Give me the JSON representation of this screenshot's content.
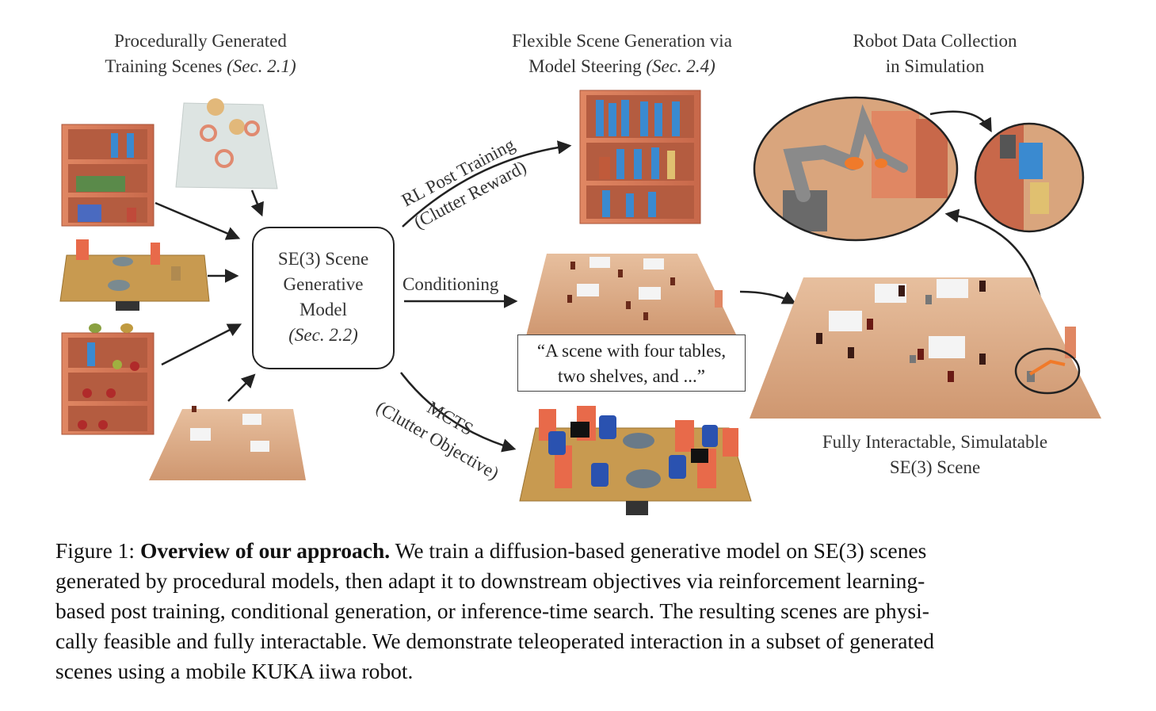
{
  "figure": {
    "titles": {
      "procedural_line1": "Procedurally Generated",
      "procedural_line2": "Training Scenes",
      "procedural_ref": "(Sec. 2.1)",
      "flexible_line1": "Flexible Scene Generation via",
      "flexible_line2": "Model Steering",
      "flexible_ref": "(Sec. 2.4)",
      "robot_line1": "Robot Data Collection",
      "robot_line2": "in Simulation",
      "final_line1": "Fully Interactable, Simulatable",
      "final_line2": "SE(3) Scene"
    },
    "model_box": {
      "line1": "SE(3) Scene",
      "line2": "Generative",
      "line3": "Model",
      "ref": "(Sec. 2.2)"
    },
    "arrows": {
      "rl_line1": "RL Post Training",
      "rl_line2": "(Clutter Reward)",
      "conditioning": "Conditioning",
      "mcts_line1": "MCTS",
      "mcts_line2": "(Clutter Objective)"
    },
    "prompt_line1": "“A scene with four tables,",
    "prompt_line2": "two shelves, and ...”"
  },
  "caption": {
    "label": "Figure 1:",
    "title": "Overview of our approach.",
    "line1": "We train a diffusion-based generative model on SE(3) scenes",
    "line2": "generated by procedural models, then adapt it to downstream objectives via reinforcement learning-",
    "line3": "based post training, conditional generation, or inference-time search. The resulting scenes are physi-",
    "line4": "cally feasible and fully interactable. We demonstrate teleoperated interaction in a subset of generated",
    "line5": "scenes using a mobile KUKA iiwa robot."
  },
  "colors": {
    "wood_shelf": "#d9795a",
    "wood_floor": "#d8a57e",
    "arrow": "#222222",
    "robot_gray": "#8a8a8a",
    "robot_orange": "#f07a2a"
  }
}
